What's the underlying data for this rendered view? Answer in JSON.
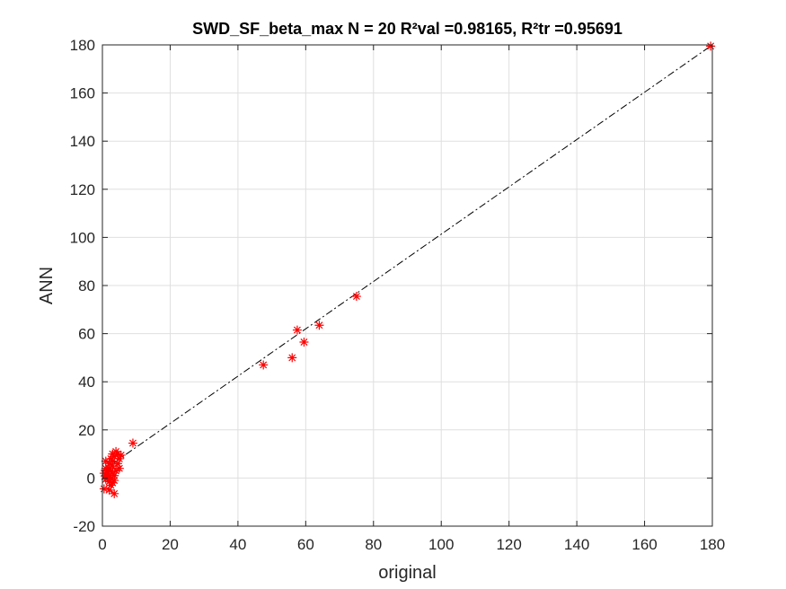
{
  "chart_data": {
    "type": "scatter",
    "title": "SWD_SF_beta_max  N = 20 R²val =0.98165, R²tr =0.95691",
    "xlabel": "original",
    "ylabel": "ANN",
    "xlim": [
      0,
      180
    ],
    "ylim": [
      -20,
      180
    ],
    "xticks": [
      0,
      20,
      40,
      60,
      80,
      100,
      120,
      140,
      160,
      180
    ],
    "yticks": [
      -20,
      0,
      20,
      40,
      60,
      80,
      100,
      120,
      140,
      160,
      180
    ],
    "grid": true,
    "marker": "*",
    "marker_color": "#ff0000",
    "fit_line": {
      "style": "dash-dot",
      "color": "#000000",
      "from": [
        0,
        3
      ],
      "to": [
        180,
        180
      ]
    },
    "points": [
      [
        179.5,
        179.5
      ],
      [
        75,
        75.5
      ],
      [
        64,
        63.5
      ],
      [
        59.5,
        56.5
      ],
      [
        57.5,
        61.5
      ],
      [
        56,
        50
      ],
      [
        47.5,
        47
      ],
      [
        9,
        14.5
      ],
      [
        5.5,
        9.5
      ],
      [
        5,
        8
      ],
      [
        5,
        4
      ],
      [
        4.5,
        10
      ],
      [
        4.5,
        6
      ],
      [
        4,
        3
      ],
      [
        4,
        11
      ],
      [
        3.5,
        9
      ],
      [
        3.5,
        1
      ],
      [
        3.5,
        -1
      ],
      [
        3.5,
        -6.5
      ],
      [
        3,
        7
      ],
      [
        3,
        5
      ],
      [
        3,
        10
      ],
      [
        3,
        2
      ],
      [
        3,
        -2
      ],
      [
        2.5,
        8
      ],
      [
        2.5,
        3
      ],
      [
        2.5,
        -3
      ],
      [
        2.5,
        0
      ],
      [
        2,
        6
      ],
      [
        2,
        4
      ],
      [
        2,
        1
      ],
      [
        2,
        -1.5
      ],
      [
        2,
        -5
      ],
      [
        1.5,
        3
      ],
      [
        1.5,
        0
      ],
      [
        1.5,
        2
      ],
      [
        1,
        1
      ],
      [
        1,
        -0.5
      ],
      [
        1,
        4
      ],
      [
        1,
        7
      ],
      [
        0.5,
        2
      ],
      [
        0.5,
        -4.5
      ]
    ]
  }
}
